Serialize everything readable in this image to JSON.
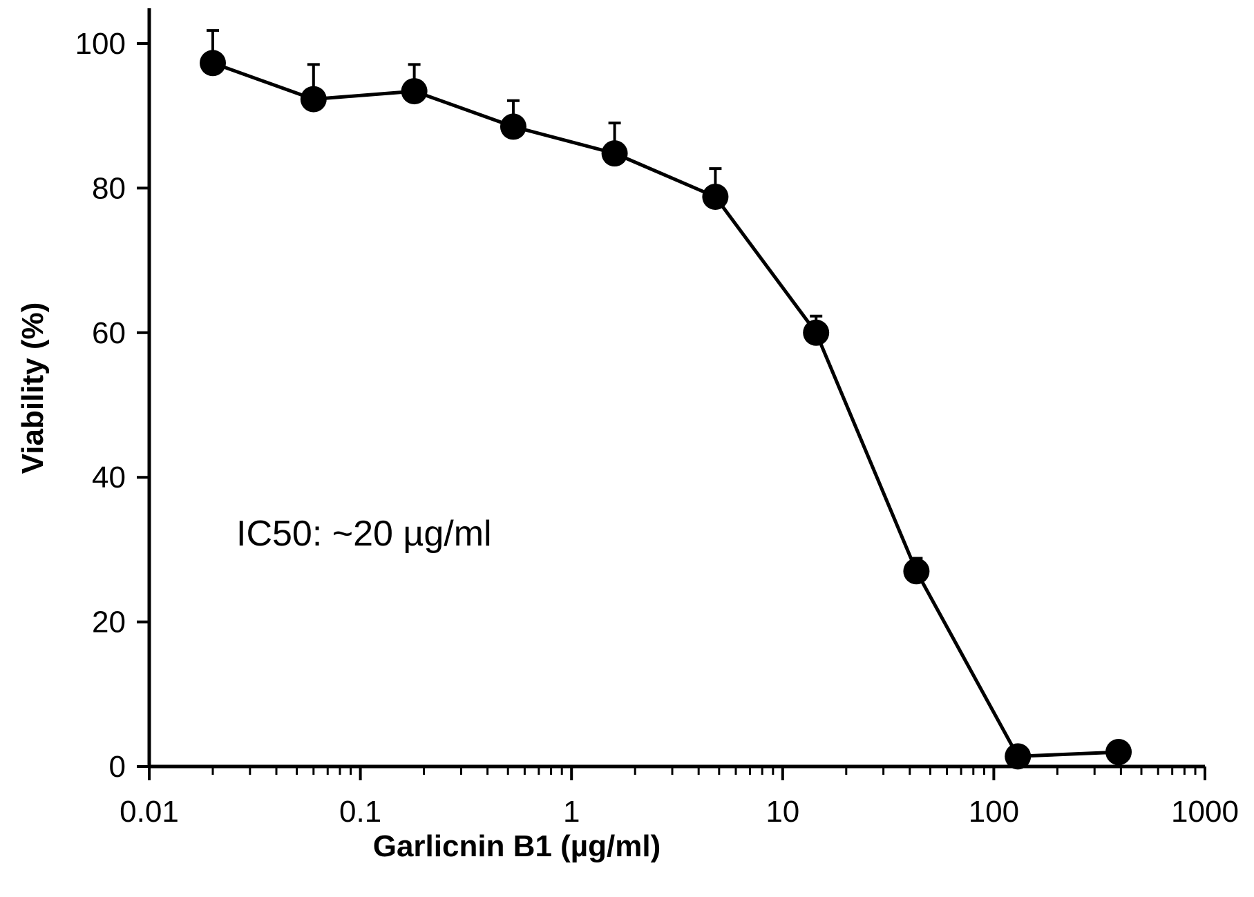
{
  "chart_data": {
    "type": "line",
    "xlabel": "Garlicnin B1 (µg/ml)",
    "ylabel": "Viability (%)",
    "x_scale": "log",
    "xlim": [
      0.01,
      1000
    ],
    "ylim": [
      0,
      100
    ],
    "x_ticks": [
      0.01,
      0.1,
      1,
      10,
      100,
      1000
    ],
    "x_tick_labels": [
      "0.01",
      "0.1",
      "1",
      "10",
      "100",
      "1000"
    ],
    "y_ticks": [
      0,
      20,
      40,
      60,
      80,
      100
    ],
    "y_tick_labels": [
      "0",
      "20",
      "40",
      "60",
      "80",
      "100"
    ],
    "grid": false,
    "annotation": "IC50: ~20 µg/ml",
    "series": [
      {
        "x": [
          0.02,
          0.06,
          0.18,
          0.53,
          1.6,
          4.8,
          14.4,
          43,
          130,
          390
        ],
        "y": [
          97.3,
          92.3,
          93.4,
          88.5,
          84.8,
          78.8,
          60.0,
          27.0,
          1.4,
          2.0
        ],
        "error": [
          4.5,
          4.8,
          3.7,
          3.6,
          4.2,
          3.9,
          2.3,
          1.8,
          0,
          0
        ]
      }
    ],
    "color": "#000000"
  }
}
